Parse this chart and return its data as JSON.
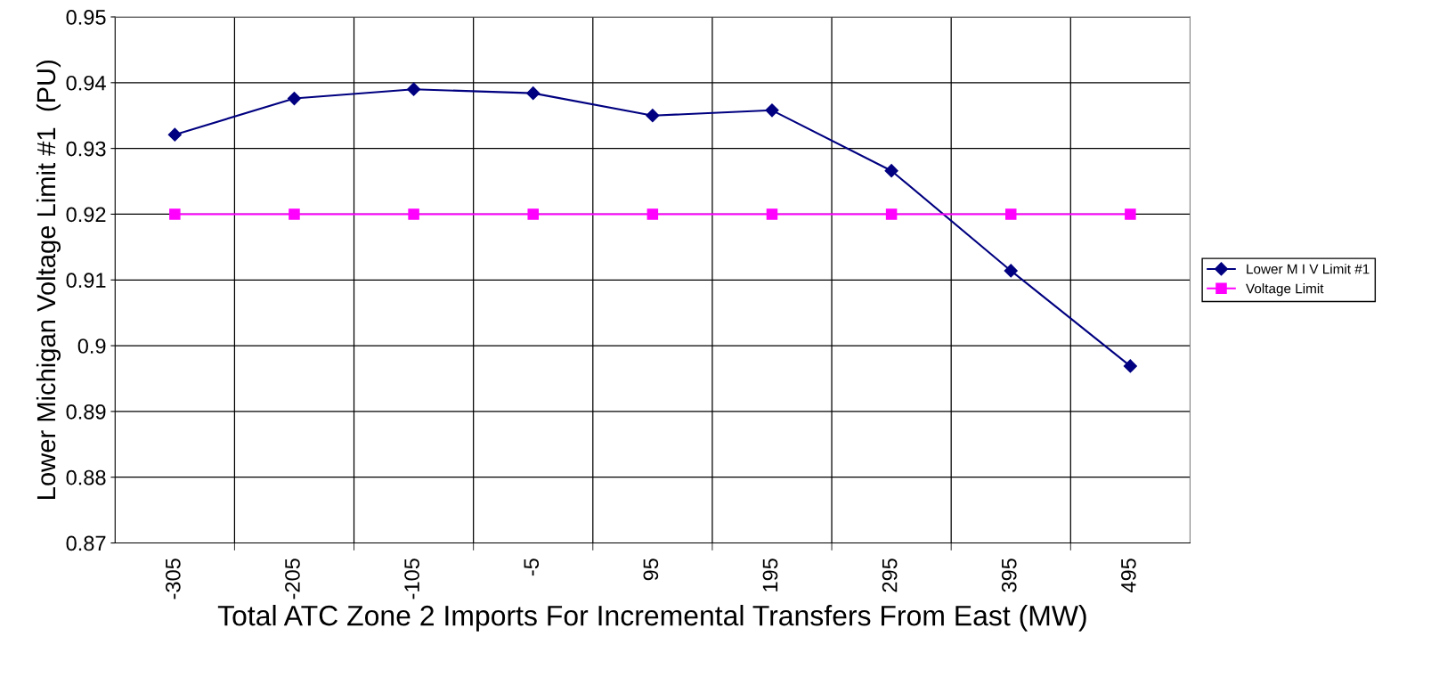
{
  "chart_data": {
    "type": "line",
    "xlabel": "Total ATC Zone 2 Imports For Incremental Transfers From East (MW)",
    "ylabel": "Lower Michigan Voltage Limit #1  (PU)",
    "categories": [
      "-305",
      "-205",
      "-105",
      "-5",
      "95",
      "195",
      "295",
      "395",
      "495"
    ],
    "series": [
      {
        "name": "Lower M I V Limit #1",
        "color": "#000080",
        "marker": "diamond",
        "values": [
          0.9321,
          0.9376,
          0.939,
          0.9384,
          0.935,
          0.9358,
          0.9266,
          0.9114,
          0.8969
        ]
      },
      {
        "name": "Voltage Limit",
        "color": "#ff00ff",
        "marker": "square",
        "values": [
          0.92,
          0.92,
          0.92,
          0.92,
          0.92,
          0.92,
          0.92,
          0.92,
          0.92
        ]
      }
    ],
    "ylim": [
      0.87,
      0.95
    ],
    "yticks": [
      0.87,
      0.88,
      0.89,
      0.9,
      0.91,
      0.92,
      0.93,
      0.94,
      0.95
    ],
    "grid": true,
    "legend": "right"
  }
}
